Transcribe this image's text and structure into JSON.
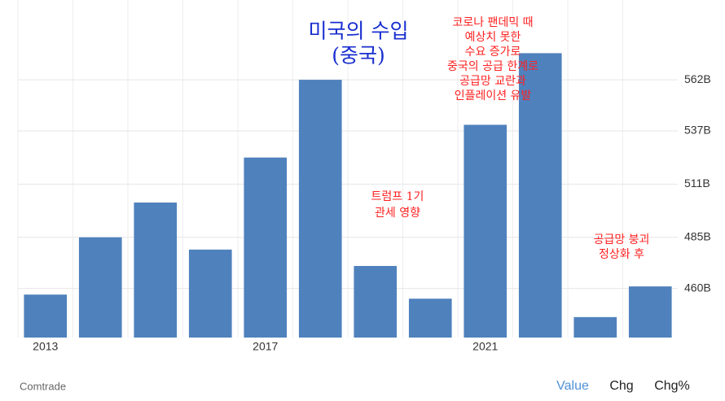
{
  "chart_data": {
    "type": "bar",
    "title": [
      "미국의 수입",
      "(중국)"
    ],
    "categories": [
      "2013",
      null,
      null,
      null,
      "2017",
      null,
      null,
      null,
      "2021",
      null,
      null,
      null
    ],
    "values": [
      457,
      485,
      502,
      479,
      524,
      562,
      471,
      455,
      540,
      575,
      446,
      461
    ],
    "color": "#4f81bd",
    "ylim": [
      436,
      601
    ],
    "yticks": [
      {
        "value": 460,
        "label": "460B"
      },
      {
        "value": 485,
        "label": "485B"
      },
      {
        "value": 511,
        "label": "511B"
      },
      {
        "value": 537,
        "label": "537B"
      },
      {
        "value": 562,
        "label": "562B"
      }
    ],
    "grid": true,
    "annotations": [
      {
        "lines": [
          "코로나 팬데믹 때",
          "예상치 못한",
          "수요 증가로",
          "중국의 공급 한계로",
          "공급망 교란과",
          "인플레이션 유발"
        ],
        "color": "#ff2020"
      },
      {
        "lines": [
          "트럼프 1기",
          "관세 영향"
        ],
        "color": "#ff2020"
      },
      {
        "lines": [
          "공급망 붕괴",
          "정상화 후"
        ],
        "color": "#ff2020"
      }
    ],
    "source": "Comtrade",
    "tabs": [
      "Value",
      "Chg",
      "Chg%"
    ]
  }
}
